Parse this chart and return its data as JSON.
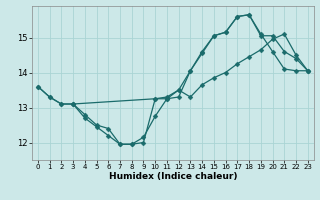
{
  "xlabel": "Humidex (Indice chaleur)",
  "xlim": [
    -0.5,
    23.5
  ],
  "ylim": [
    11.5,
    15.9
  ],
  "background_color": "#cce8e8",
  "grid_color": "#aad4d4",
  "line_color": "#1a6b6b",
  "xticks": [
    0,
    1,
    2,
    3,
    4,
    5,
    6,
    7,
    8,
    9,
    10,
    11,
    12,
    13,
    14,
    15,
    16,
    17,
    18,
    19,
    20,
    21,
    22,
    23
  ],
  "yticks": [
    12,
    13,
    14,
    15
  ],
  "line1_x": [
    0,
    1,
    2,
    3,
    10,
    11,
    12,
    13,
    14,
    15,
    16,
    17,
    18,
    19,
    20,
    21,
    22,
    23
  ],
  "line1_y": [
    13.6,
    13.3,
    13.1,
    13.1,
    13.25,
    13.3,
    13.5,
    13.3,
    13.65,
    13.85,
    14.0,
    14.25,
    14.45,
    14.65,
    14.95,
    15.1,
    14.5,
    14.05
  ],
  "line2_x": [
    0,
    1,
    2,
    3,
    4,
    5,
    6,
    7,
    8,
    9,
    10,
    11,
    12,
    13,
    14,
    15,
    16,
    17,
    18,
    19,
    20,
    21,
    22,
    23
  ],
  "line2_y": [
    13.6,
    13.3,
    13.1,
    13.1,
    12.8,
    12.5,
    12.4,
    11.95,
    11.95,
    12.0,
    13.25,
    13.25,
    13.3,
    14.05,
    14.6,
    15.05,
    15.15,
    15.6,
    15.65,
    15.1,
    14.6,
    14.1,
    14.05,
    14.05
  ],
  "line3_x": [
    3,
    4,
    5,
    6,
    7,
    8,
    9,
    10,
    11,
    12,
    13,
    14,
    15,
    16,
    17,
    18,
    19,
    20,
    21,
    22,
    23
  ],
  "line3_y": [
    13.1,
    12.7,
    12.45,
    12.2,
    11.95,
    11.95,
    12.15,
    12.75,
    13.25,
    13.5,
    14.05,
    14.55,
    15.05,
    15.15,
    15.6,
    15.65,
    15.05,
    15.05,
    14.6,
    14.4,
    14.05
  ]
}
